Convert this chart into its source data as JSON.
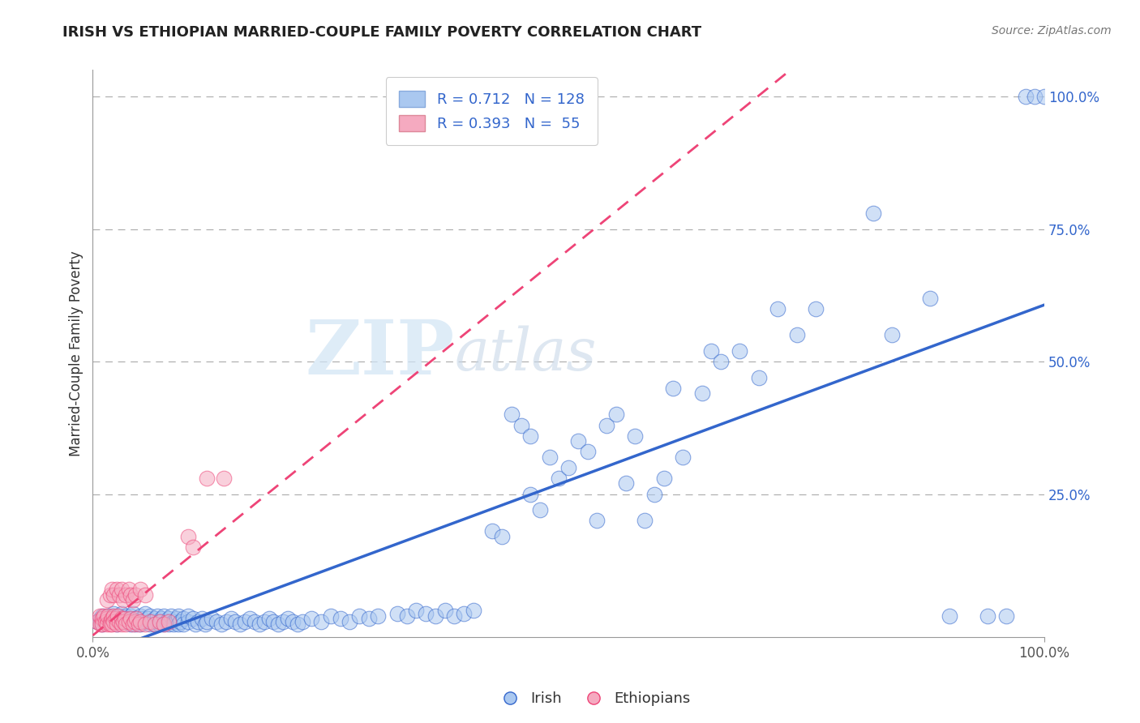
{
  "title": "IRISH VS ETHIOPIAN MARRIED-COUPLE FAMILY POVERTY CORRELATION CHART",
  "source": "Source: ZipAtlas.com",
  "ylabel": "Married-Couple Family Poverty",
  "xlim": [
    0,
    1
  ],
  "ylim": [
    0,
    1.05
  ],
  "grid_color": "#cccccc",
  "background_color": "#ffffff",
  "irish_color": "#aac8f0",
  "ethiopian_color": "#f5aac0",
  "irish_line_color": "#3366cc",
  "ethiopian_line_color": "#ee4477",
  "watermark_zip": "ZIP",
  "watermark_atlas": "atlas",
  "legend_R_irish": "0.712",
  "legend_N_irish": "128",
  "legend_R_ethiopian": "0.393",
  "legend_N_ethiopian": "55",
  "ytick_color": "#3366cc",
  "xtick_color": "#555555",
  "title_color": "#222222",
  "source_color": "#777777"
}
